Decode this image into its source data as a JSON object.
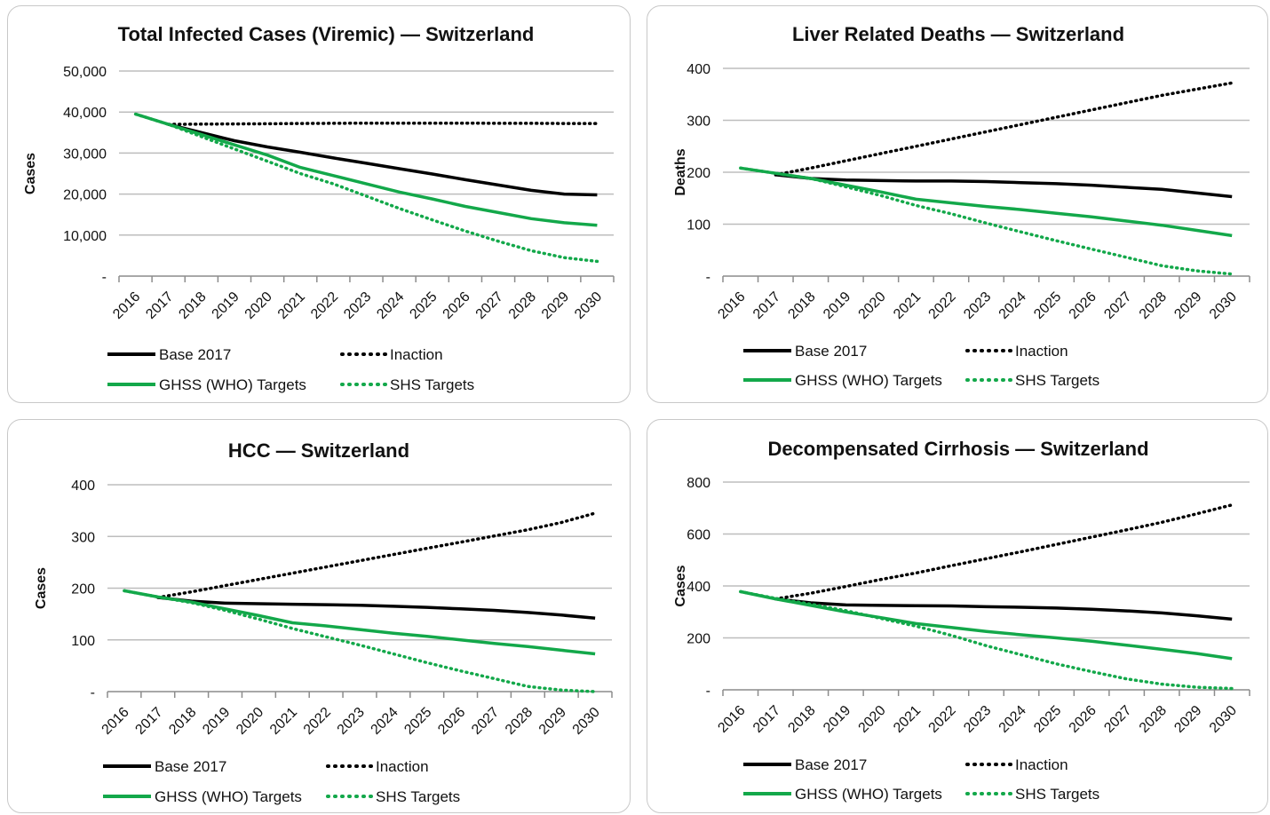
{
  "colors": {
    "black": "#000000",
    "green": "#13a84a",
    "grid": "#bdbdbd",
    "axis": "#8c8c8c"
  },
  "chart_data": [
    {
      "type": "line",
      "title": "Total Infected Cases (Viremic) — Switzerland",
      "ylabel": "Cases",
      "xlabel": "",
      "ylim": [
        0,
        50000
      ],
      "yticks": [
        "-",
        "10,000",
        "20,000",
        "30,000",
        "40,000",
        "50,000"
      ],
      "categories": [
        "2016",
        "2017",
        "2018",
        "2019",
        "2020",
        "2021",
        "2022",
        "2023",
        "2024",
        "2025",
        "2026",
        "2027",
        "2028",
        "2029",
        "2030"
      ],
      "grid": true,
      "legend": "bottom",
      "series": [
        {
          "name": "Base 2017",
          "style": "solid",
          "color": "black",
          "values": [
            null,
            37000,
            35000,
            33000,
            31500,
            30200,
            28800,
            27500,
            26200,
            24900,
            23500,
            22200,
            20900,
            20000,
            19800
          ]
        },
        {
          "name": "Inaction",
          "style": "dotted",
          "color": "black",
          "values": [
            null,
            37000,
            37050,
            37100,
            37150,
            37200,
            37250,
            37300,
            37300,
            37300,
            37300,
            37250,
            37250,
            37200,
            37200
          ]
        },
        {
          "name": "GHSS (WHO) Targets",
          "style": "solid",
          "color": "green",
          "values": [
            39500,
            37000,
            34500,
            32000,
            29500,
            26500,
            24500,
            22500,
            20500,
            18800,
            17000,
            15500,
            14000,
            13000,
            12400
          ]
        },
        {
          "name": "SHS Targets",
          "style": "dotted",
          "color": "green",
          "values": [
            39500,
            37000,
            34000,
            31000,
            28000,
            25000,
            22500,
            19500,
            16500,
            13700,
            11000,
            8500,
            6200,
            4500,
            3600
          ]
        }
      ]
    },
    {
      "type": "line",
      "title": "Liver Related Deaths — Switzerland",
      "ylabel": "Deaths",
      "xlabel": "",
      "ylim": [
        0,
        400
      ],
      "yticks": [
        "-",
        "100",
        "200",
        "300",
        "400"
      ],
      "categories": [
        "2016",
        "2017",
        "2018",
        "2019",
        "2020",
        "2021",
        "2022",
        "2023",
        "2024",
        "2025",
        "2026",
        "2027",
        "2028",
        "2029",
        "2030"
      ],
      "grid": true,
      "legend": "bottom",
      "series": [
        {
          "name": "Base 2017",
          "style": "solid",
          "color": "black",
          "values": [
            null,
            195,
            188,
            185,
            184,
            183,
            183,
            182,
            180,
            178,
            175,
            171,
            167,
            160,
            153
          ]
        },
        {
          "name": "Inaction",
          "style": "dotted",
          "color": "black",
          "values": [
            null,
            195,
            208,
            222,
            236,
            250,
            264,
            278,
            292,
            306,
            320,
            334,
            348,
            360,
            372
          ]
        },
        {
          "name": "GHSS (WHO) Targets",
          "style": "solid",
          "color": "green",
          "values": [
            208,
            198,
            188,
            175,
            162,
            148,
            141,
            134,
            128,
            121,
            114,
            106,
            98,
            88,
            78
          ]
        },
        {
          "name": "SHS Targets",
          "style": "dotted",
          "color": "green",
          "values": [
            208,
            198,
            188,
            172,
            155,
            136,
            120,
            102,
            85,
            68,
            52,
            36,
            20,
            10,
            4
          ]
        }
      ]
    },
    {
      "type": "line",
      "title": "HCC — Switzerland",
      "ylabel": "Cases",
      "xlabel": "",
      "ylim": [
        0,
        400
      ],
      "yticks": [
        "-",
        "100",
        "200",
        "300",
        "400"
      ],
      "categories": [
        "2016",
        "2017",
        "2018",
        "2019",
        "2020",
        "2021",
        "2022",
        "2023",
        "2024",
        "2025",
        "2026",
        "2027",
        "2028",
        "2029",
        "2030"
      ],
      "grid": true,
      "legend": "bottom",
      "series": [
        {
          "name": "Base 2017",
          "style": "solid",
          "color": "black",
          "values": [
            null,
            182,
            175,
            171,
            170,
            169,
            168,
            167,
            165,
            163,
            160,
            157,
            153,
            148,
            142
          ]
        },
        {
          "name": "Inaction",
          "style": "dotted",
          "color": "black",
          "values": [
            null,
            182,
            193,
            205,
            217,
            229,
            241,
            253,
            265,
            277,
            289,
            301,
            313,
            327,
            345
          ]
        },
        {
          "name": "GHSS (WHO) Targets",
          "style": "solid",
          "color": "green",
          "values": [
            195,
            183,
            173,
            160,
            147,
            133,
            127,
            120,
            113,
            107,
            100,
            93,
            87,
            80,
            73
          ]
        },
        {
          "name": "SHS Targets",
          "style": "dotted",
          "color": "green",
          "values": [
            195,
            183,
            172,
            157,
            140,
            122,
            106,
            90,
            73,
            56,
            40,
            25,
            10,
            3,
            0
          ]
        }
      ]
    },
    {
      "type": "line",
      "title": "Decompensated Cirrhosis — Switzerland",
      "ylabel": "Cases",
      "xlabel": "",
      "ylim": [
        0,
        800
      ],
      "yticks": [
        "-",
        "200",
        "400",
        "600",
        "800"
      ],
      "categories": [
        "2016",
        "2017",
        "2018",
        "2019",
        "2020",
        "2021",
        "2022",
        "2023",
        "2024",
        "2025",
        "2026",
        "2027",
        "2028",
        "2029",
        "2030"
      ],
      "grid": true,
      "legend": "bottom",
      "series": [
        {
          "name": "Base 2017",
          "style": "solid",
          "color": "black",
          "values": [
            null,
            350,
            335,
            327,
            325,
            324,
            323,
            320,
            318,
            315,
            310,
            304,
            296,
            285,
            272
          ]
        },
        {
          "name": "Inaction",
          "style": "dotted",
          "color": "black",
          "values": [
            null,
            350,
            372,
            398,
            425,
            450,
            478,
            505,
            532,
            560,
            588,
            616,
            645,
            678,
            712
          ]
        },
        {
          "name": "GHSS (WHO) Targets",
          "style": "solid",
          "color": "green",
          "values": [
            378,
            350,
            325,
            300,
            278,
            255,
            240,
            225,
            212,
            200,
            187,
            172,
            156,
            140,
            120
          ]
        },
        {
          "name": "SHS Targets",
          "style": "dotted",
          "color": "green",
          "values": [
            378,
            352,
            330,
            305,
            275,
            245,
            210,
            170,
            135,
            100,
            70,
            42,
            22,
            10,
            5
          ]
        }
      ]
    }
  ]
}
